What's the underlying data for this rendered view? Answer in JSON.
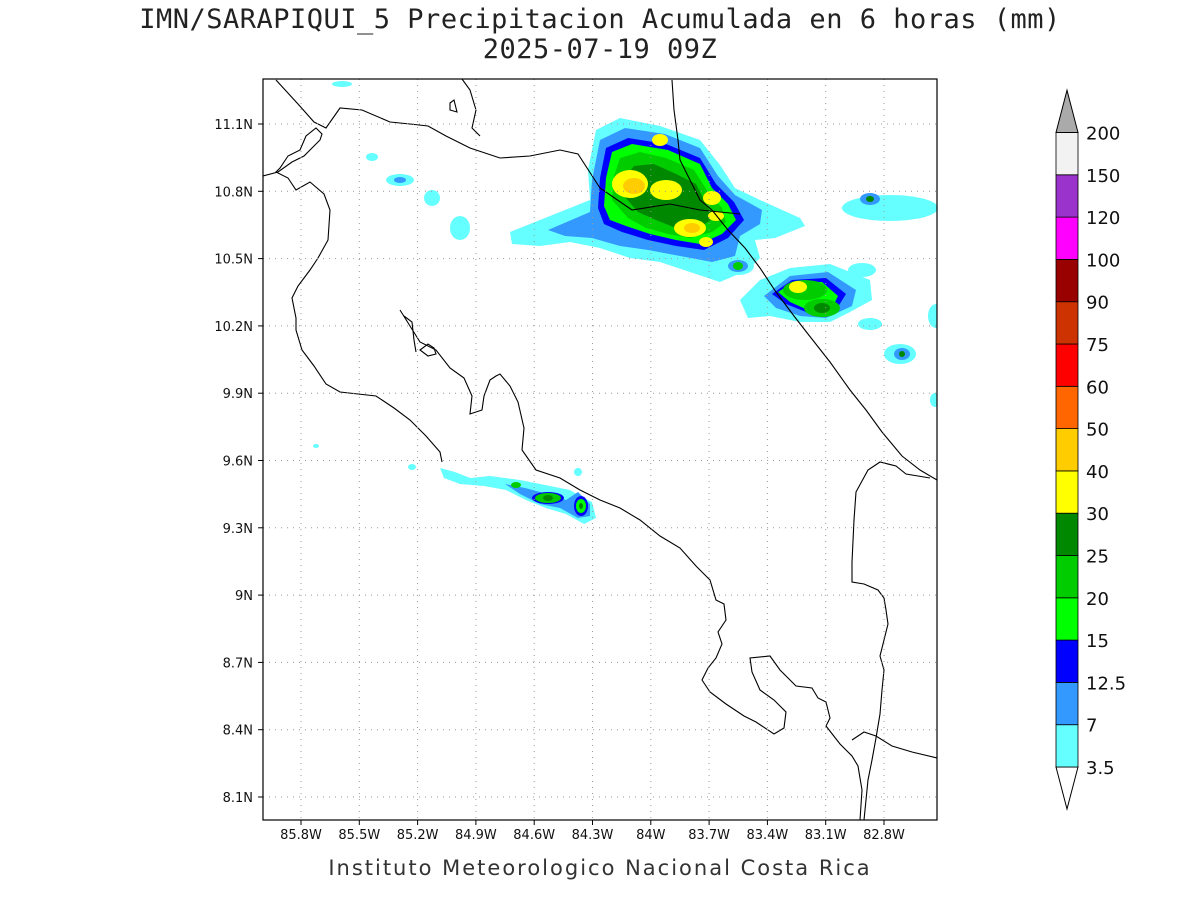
{
  "title": "IMN/SARAPIQUI_5 Precipitacion Acumulada en 6 horas (mm)",
  "subtitle": "2025-07-19 09Z",
  "footer": "Instituto Meteorologico Nacional Costa Rica",
  "map": {
    "lon_range": [
      -86.0,
      -82.5
    ],
    "lat_range": [
      8.0,
      11.3
    ],
    "grid": true,
    "lon_ticks": [
      {
        "value": -85.8,
        "label": "85.8W"
      },
      {
        "value": -85.5,
        "label": "85.5W"
      },
      {
        "value": -85.2,
        "label": "85.2W"
      },
      {
        "value": -84.9,
        "label": "84.9W"
      },
      {
        "value": -84.6,
        "label": "84.6W"
      },
      {
        "value": -84.3,
        "label": "84.3W"
      },
      {
        "value": -84.0,
        "label": "84W"
      },
      {
        "value": -83.7,
        "label": "83.7W"
      },
      {
        "value": -83.4,
        "label": "83.4W"
      },
      {
        "value": -83.1,
        "label": "83.1W"
      },
      {
        "value": -82.8,
        "label": "82.8W"
      }
    ],
    "lat_ticks": [
      {
        "value": 11.1,
        "label": "11.1N"
      },
      {
        "value": 10.8,
        "label": "10.8N"
      },
      {
        "value": 10.5,
        "label": "10.5N"
      },
      {
        "value": 10.2,
        "label": "10.2N"
      },
      {
        "value": 9.9,
        "label": "9.9N"
      },
      {
        "value": 9.6,
        "label": "9.6N"
      },
      {
        "value": 9.3,
        "label": "9.3N"
      },
      {
        "value": 9.0,
        "label": "9N"
      },
      {
        "value": 8.7,
        "label": "8.7N"
      },
      {
        "value": 8.4,
        "label": "8.4N"
      },
      {
        "value": 8.1,
        "label": "8.1N"
      }
    ]
  },
  "colorbar": {
    "levels": [
      {
        "label": "3.5",
        "color": "#66ffff"
      },
      {
        "label": "7",
        "color": "#3399ff"
      },
      {
        "label": "12.5",
        "color": "#0000ff"
      },
      {
        "label": "15",
        "color": "#00ff00"
      },
      {
        "label": "20",
        "color": "#00cc00"
      },
      {
        "label": "25",
        "color": "#008800"
      },
      {
        "label": "30",
        "color": "#ffff00"
      },
      {
        "label": "40",
        "color": "#ffcc00"
      },
      {
        "label": "50",
        "color": "#ff6600"
      },
      {
        "label": "60",
        "color": "#ff0000"
      },
      {
        "label": "75",
        "color": "#cc3300"
      },
      {
        "label": "90",
        "color": "#990000"
      },
      {
        "label": "100",
        "color": "#ff00ff"
      },
      {
        "label": "120",
        "color": "#9933cc"
      },
      {
        "label": "150",
        "color": "#f2f2f2"
      },
      {
        "label": "200",
        "color": "#aaaaaa"
      }
    ]
  },
  "precip_cells": [
    {
      "lon": -84.06,
      "lat": 10.82,
      "max": 40
    },
    {
      "lon": -83.94,
      "lat": 10.9,
      "max": 30
    },
    {
      "lon": -83.8,
      "lat": 10.66,
      "max": 40
    },
    {
      "lon": -83.7,
      "lat": 10.76,
      "max": 30
    },
    {
      "lon": -83.18,
      "lat": 10.38,
      "max": 30
    },
    {
      "lon": -83.07,
      "lat": 10.28,
      "max": 25
    },
    {
      "lon": -83.55,
      "lat": 10.45,
      "max": 15
    },
    {
      "lon": -82.73,
      "lat": 10.08,
      "max": 12.5
    },
    {
      "lon": -82.77,
      "lat": 10.76,
      "max": 12.5
    },
    {
      "lon": -84.54,
      "lat": 9.41,
      "max": 25
    },
    {
      "lon": -84.35,
      "lat": 9.39,
      "max": 20
    },
    {
      "lon": -84.72,
      "lat": 9.49,
      "max": 15
    }
  ]
}
